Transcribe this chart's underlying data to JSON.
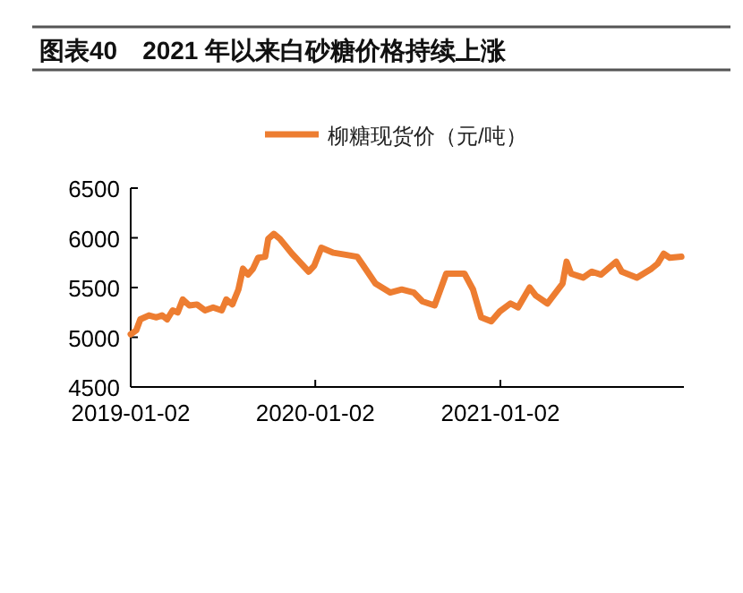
{
  "chart_data": {
    "type": "line",
    "title": "图表40　2021 年以来白砂糖价格持续上涨",
    "legend": "top",
    "grid": false,
    "marker": "none",
    "line_style": "solid",
    "xlim": [
      "2019-01-02",
      "2021-12-31"
    ],
    "xticks": [
      "2019-01-02",
      "2020-01-02",
      "2021-01-02"
    ],
    "ylim": [
      4500,
      6500
    ],
    "yticks": [
      4500,
      5000,
      5500,
      6000,
      6500
    ],
    "series": [
      {
        "name": "柳糖现货价（元/吨）",
        "color": "#ed7d31",
        "x": [
          "2019-01-02",
          "2019-01-13",
          "2019-01-21",
          "2019-02-07",
          "2019-02-22",
          "2019-03-05",
          "2019-03-15",
          "2019-03-26",
          "2019-04-05",
          "2019-04-15",
          "2019-04-28",
          "2019-05-13",
          "2019-05-29",
          "2019-06-14",
          "2019-07-01",
          "2019-07-10",
          "2019-07-22",
          "2019-08-03",
          "2019-08-12",
          "2019-08-22",
          "2019-09-01",
          "2019-09-11",
          "2019-09-25",
          "2019-10-01",
          "2019-10-12",
          "2019-10-24",
          "2019-11-17",
          "2019-12-20",
          "2019-12-31",
          "2020-01-14",
          "2020-02-07",
          "2020-03-02",
          "2020-03-25",
          "2020-04-06",
          "2020-04-30",
          "2020-05-29",
          "2020-06-21",
          "2020-07-15",
          "2020-08-01",
          "2020-08-25",
          "2020-09-17",
          "2020-10-23",
          "2020-11-09",
          "2020-11-25",
          "2020-12-15",
          "2021-01-01",
          "2021-01-22",
          "2021-02-06",
          "2021-03-01",
          "2021-03-13",
          "2021-04-05",
          "2021-05-05",
          "2021-05-13",
          "2021-05-22",
          "2021-06-15",
          "2021-07-02",
          "2021-07-20",
          "2021-08-19",
          "2021-08-30",
          "2021-09-29",
          "2021-10-28",
          "2021-11-09",
          "2021-11-21",
          "2021-12-03",
          "2021-12-26"
        ],
        "values": [
          5030,
          5070,
          5180,
          5220,
          5200,
          5220,
          5180,
          5270,
          5250,
          5380,
          5320,
          5330,
          5270,
          5300,
          5270,
          5380,
          5330,
          5480,
          5690,
          5630,
          5690,
          5800,
          5810,
          5990,
          6040,
          5990,
          5840,
          5660,
          5720,
          5900,
          5850,
          5830,
          5810,
          5720,
          5540,
          5450,
          5480,
          5450,
          5360,
          5320,
          5640,
          5640,
          5480,
          5200,
          5160,
          5260,
          5340,
          5300,
          5500,
          5420,
          5340,
          5540,
          5760,
          5640,
          5600,
          5660,
          5630,
          5760,
          5660,
          5600,
          5690,
          5740,
          5840,
          5800,
          5810
        ]
      }
    ]
  }
}
